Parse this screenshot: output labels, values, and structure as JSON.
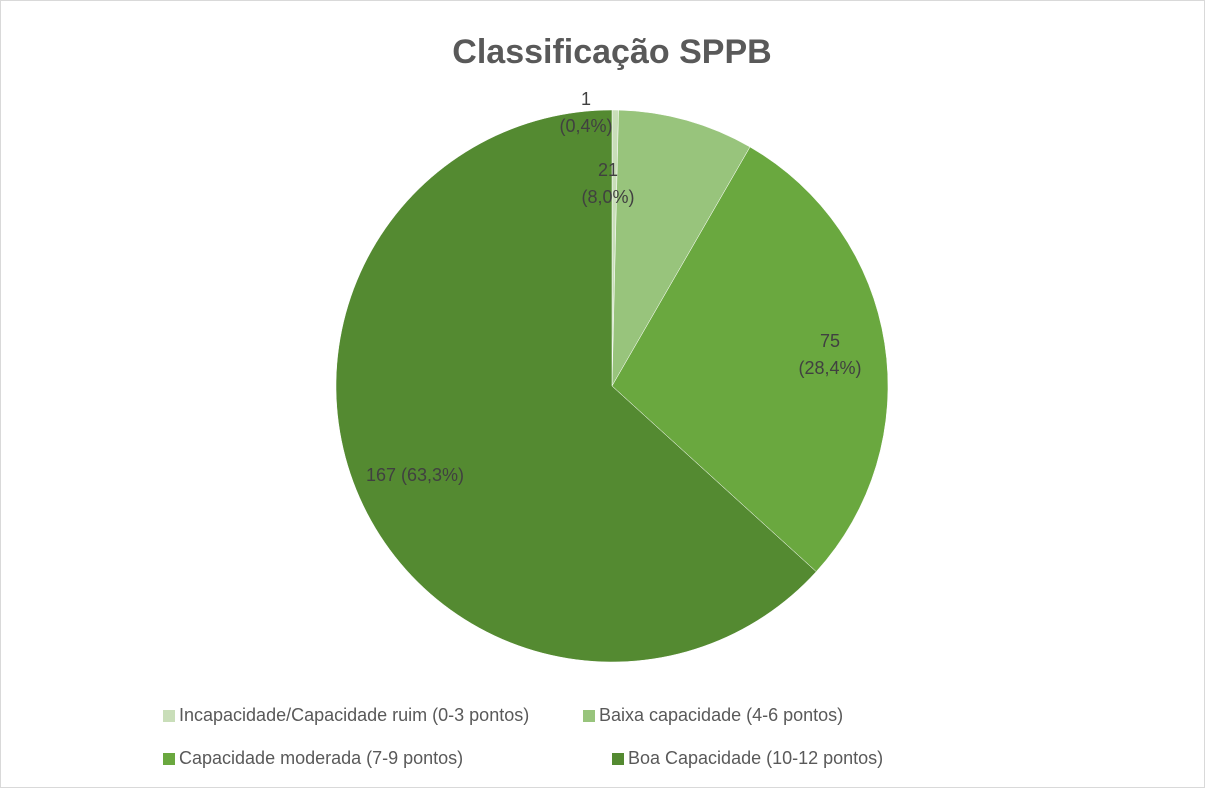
{
  "chart_data": {
    "type": "pie",
    "title": "Classificação SPPB",
    "categories": [
      "Incapacidade/Capacidade ruim (0-3 pontos)",
      "Baixa capacidade (4-6 pontos)",
      "Capacidade moderada (7-9 pontos)",
      "Boa Capacidade (10-12 pontos)"
    ],
    "values": [
      1,
      21,
      75,
      167
    ],
    "value_labels": [
      [
        "1",
        "(0,4%)"
      ],
      [
        "21",
        "(8,0%)"
      ],
      [
        "75",
        "(28,4%)"
      ],
      [
        "167 (63,3%)"
      ]
    ],
    "colors": [
      "#c9deb9",
      "#98c47c",
      "#6aa83f",
      "#548a31"
    ],
    "legend": "bottom"
  }
}
